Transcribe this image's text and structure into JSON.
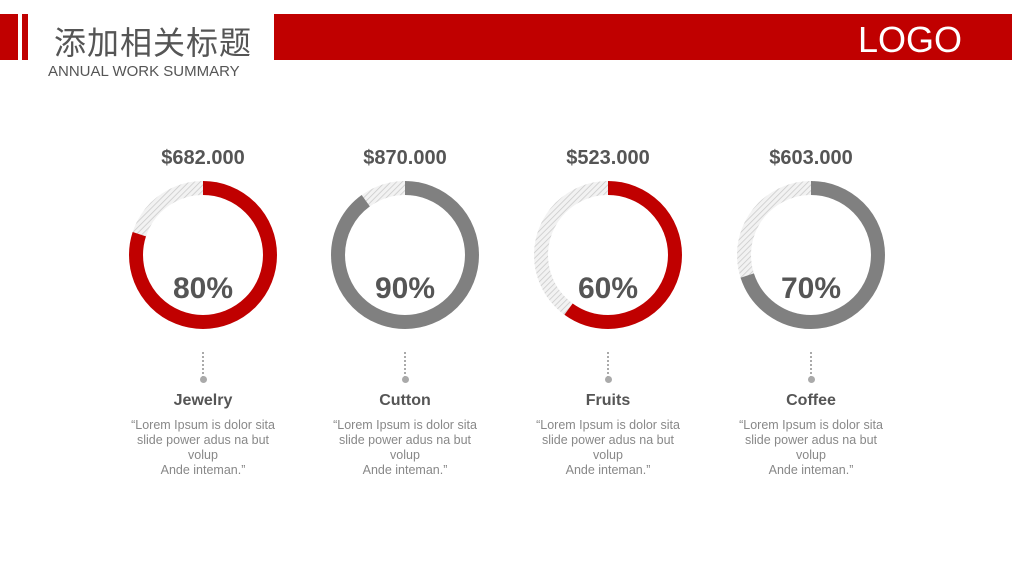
{
  "header": {
    "title": "添加相关标题",
    "subtitle": "ANNUAL WORK SUMMARY",
    "logo": "LOGO"
  },
  "colors": {
    "accent": "#c00000",
    "gray": "#808080"
  },
  "chart_data": {
    "type": "donut",
    "items": [
      {
        "name": "Jewelry",
        "amount": "$682.000",
        "percent": 80,
        "label": "80%",
        "color": "#c00000",
        "desc": [
          "“Lorem Ipsum is dolor sita",
          "slide power adus na but",
          "volup",
          "Ande inteman.”"
        ]
      },
      {
        "name": "Cutton",
        "amount": "$870.000",
        "percent": 90,
        "label": "90%",
        "color": "#808080",
        "desc": [
          "“Lorem Ipsum is dolor sita",
          "slide power adus na but",
          "volup",
          "Ande inteman.”"
        ]
      },
      {
        "name": "Fruits",
        "amount": "$523.000",
        "percent": 60,
        "label": "60%",
        "color": "#c00000",
        "desc": [
          "“Lorem Ipsum is dolor sita",
          "slide power adus na but",
          "volup",
          "Ande inteman.”"
        ]
      },
      {
        "name": "Coffee",
        "amount": "$603.000",
        "percent": 70,
        "label": "70%",
        "color": "#808080",
        "desc": [
          "“Lorem Ipsum is dolor sita",
          "slide power adus na but",
          "volup",
          "Ande inteman.”"
        ]
      }
    ]
  }
}
